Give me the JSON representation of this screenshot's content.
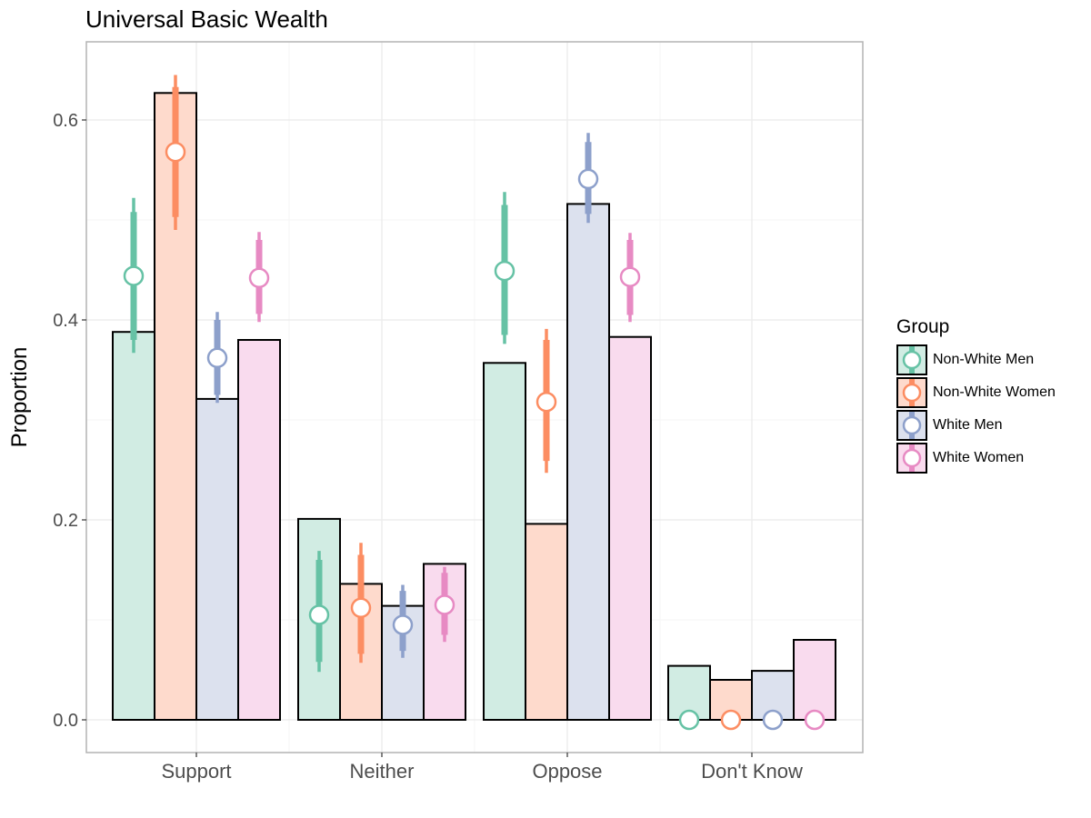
{
  "chart_data": {
    "type": "bar",
    "title": "Universal Basic Wealth",
    "xlabel": "",
    "ylabel": "Proportion",
    "categories": [
      "Support",
      "Neither",
      "Oppose",
      "Don't Know"
    ],
    "ylim": [
      -0.032,
      0.68
    ],
    "yticks": [
      0.0,
      0.2,
      0.4,
      0.6
    ],
    "ytick_labels": [
      "0.0",
      "0.2",
      "0.4",
      "0.6"
    ],
    "grid": true,
    "legend": {
      "title": "Group",
      "position": "right"
    },
    "series": [
      {
        "name": "Non-White Men",
        "line_color": "#66c2a5",
        "fill_color": "#d1ece3",
        "bar_values": [
          0.388,
          0.201,
          0.357,
          0.054
        ],
        "estimates": [
          0.444,
          0.105,
          0.449,
          0.0
        ],
        "ci_inner": [
          [
            0.38,
            0.508
          ],
          [
            0.058,
            0.16
          ],
          [
            0.385,
            0.515
          ],
          null
        ],
        "ci_outer": [
          [
            0.367,
            0.522
          ],
          [
            0.048,
            0.169
          ],
          [
            0.376,
            0.528
          ],
          null
        ]
      },
      {
        "name": "Non-White Women",
        "line_color": "#fc8d62",
        "fill_color": "#fedacc",
        "bar_values": [
          0.627,
          0.136,
          0.196,
          0.04
        ],
        "estimates": [
          0.568,
          0.112,
          0.318,
          0.0
        ],
        "ci_inner": [
          [
            0.503,
            0.633
          ],
          [
            0.066,
            0.165
          ],
          [
            0.259,
            0.38
          ],
          null
        ],
        "ci_outer": [
          [
            0.49,
            0.645
          ],
          [
            0.057,
            0.177
          ],
          [
            0.247,
            0.391
          ],
          null
        ]
      },
      {
        "name": "White Men",
        "line_color": "#8da0cb",
        "fill_color": "#dce1ee",
        "bar_values": [
          0.321,
          0.114,
          0.516,
          0.049
        ],
        "estimates": [
          0.362,
          0.095,
          0.541,
          0.0
        ],
        "ci_inner": [
          [
            0.325,
            0.4
          ],
          [
            0.069,
            0.129
          ],
          [
            0.506,
            0.578
          ],
          null
        ],
        "ci_outer": [
          [
            0.317,
            0.408
          ],
          [
            0.062,
            0.135
          ],
          [
            0.497,
            0.587
          ],
          null
        ]
      },
      {
        "name": "White Women",
        "line_color": "#e78ac3",
        "fill_color": "#f9dbee",
        "bar_values": [
          0.38,
          0.156,
          0.383,
          0.08
        ],
        "estimates": [
          0.442,
          0.115,
          0.443,
          0.0
        ],
        "ci_inner": [
          [
            0.406,
            0.48
          ],
          [
            0.085,
            0.147
          ],
          [
            0.405,
            0.48
          ],
          null
        ],
        "ci_outer": [
          [
            0.398,
            0.488
          ],
          [
            0.078,
            0.153
          ],
          [
            0.398,
            0.487
          ],
          null
        ]
      }
    ]
  },
  "colors": {
    "panel_border": "#b3b3b3",
    "grid_major": "#ebebeb",
    "grid_minor": "#f5f5f5",
    "bar_outline": "#000000",
    "point_fill": "#ffffff",
    "tick_text": "#4d4d4d"
  }
}
